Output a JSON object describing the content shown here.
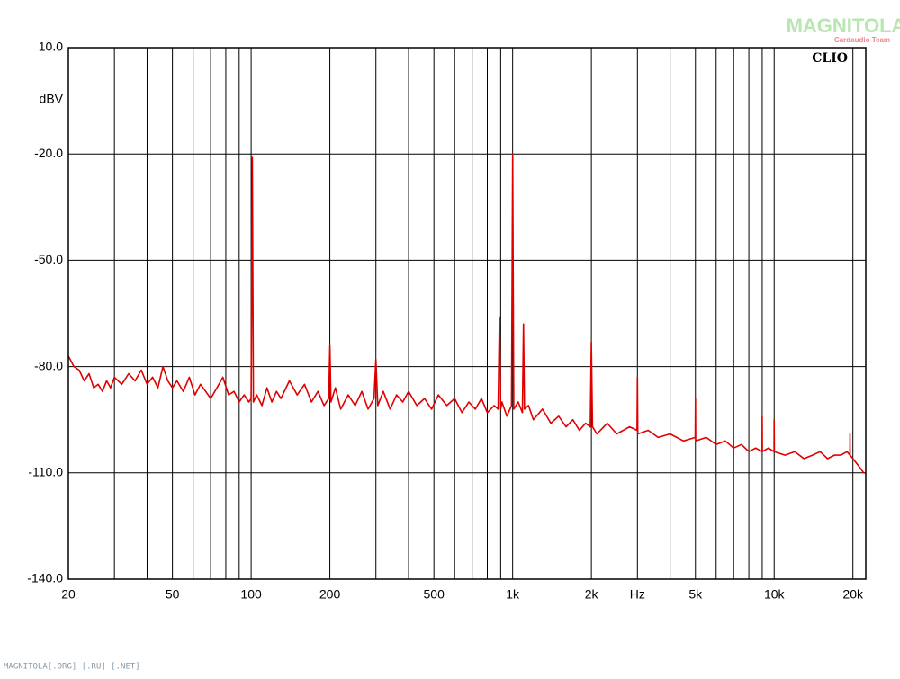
{
  "chart_data": {
    "type": "line",
    "y_label": "dBV",
    "logo": "CLIO",
    "watermark": "MAGNITOLA",
    "watermark_sub": "Cardaudio Team",
    "footer": "MAGNITOLA[.ORG] [.RU] [.NET]",
    "xlog": true,
    "grid": true,
    "xlim": [
      20,
      22400
    ],
    "ylim": [
      -140,
      10
    ],
    "yticks": [
      {
        "value": 10,
        "label": "10.0"
      },
      {
        "value": -20,
        "label": "-20.0"
      },
      {
        "value": -50,
        "label": "-50.0"
      },
      {
        "value": -80,
        "label": "-80.0"
      },
      {
        "value": -110,
        "label": "-110.0"
      },
      {
        "value": -140,
        "label": "-140.0"
      }
    ],
    "xticks": [
      20,
      50,
      100,
      200,
      500,
      {
        "value": 1000,
        "label": "1k"
      },
      {
        "value": 2000,
        "label": "2k"
      },
      {
        "value": 3000,
        "label": "Hz"
      },
      {
        "value": 5000,
        "label": "5k"
      },
      {
        "value": 10000,
        "label": "10k"
      },
      {
        "value": 20000,
        "label": "20k"
      }
    ],
    "x_grid": [
      20,
      30,
      40,
      50,
      60,
      70,
      80,
      90,
      100,
      200,
      300,
      400,
      500,
      600,
      700,
      800,
      900,
      1000,
      2000,
      3000,
      4000,
      5000,
      6000,
      7000,
      8000,
      9000,
      10000,
      20000
    ],
    "x": [
      20,
      21,
      22,
      23,
      24,
      25,
      26,
      27,
      28,
      29,
      30,
      32,
      34,
      36,
      38,
      40,
      42,
      44,
      46,
      48,
      50,
      52,
      55,
      58,
      61,
      64,
      67,
      70,
      74,
      78,
      82,
      86,
      90,
      94,
      98,
      100,
      101,
      102,
      105,
      110,
      115,
      120,
      125,
      130,
      140,
      150,
      160,
      170,
      180,
      190,
      198,
      200,
      202,
      210,
      220,
      235,
      250,
      265,
      280,
      295,
      300,
      305,
      320,
      340,
      360,
      380,
      400,
      430,
      460,
      490,
      520,
      560,
      600,
      640,
      680,
      720,
      760,
      800,
      850,
      880,
      890,
      900,
      910,
      950,
      990,
      1000,
      1010,
      1050,
      1090,
      1100,
      1110,
      1150,
      1200,
      1300,
      1400,
      1500,
      1600,
      1700,
      1800,
      1900,
      1980,
      2000,
      2020,
      2100,
      2300,
      2500,
      2800,
      2990,
      3000,
      3010,
      3300,
      3600,
      4000,
      4500,
      4990,
      5000,
      5010,
      5500,
      6000,
      6500,
      7000,
      7500,
      8000,
      8500,
      8990,
      9000,
      9010,
      9500,
      9990,
      10000,
      10010,
      11000,
      12000,
      13000,
      14000,
      15000,
      16000,
      17000,
      18000,
      19000,
      19490,
      19500,
      19510,
      20000,
      21000,
      22000,
      22400
    ],
    "series": [
      {
        "color": "#e00000",
        "values": [
          -77,
          -80,
          -81,
          -84,
          -82,
          -86,
          -85,
          -87,
          -84,
          -86,
          -83,
          -85,
          -82,
          -84,
          -81,
          -85,
          -83,
          -86,
          -80,
          -84,
          -86,
          -84,
          -87,
          -83,
          -88,
          -85,
          -87,
          -89,
          -86,
          -83,
          -88,
          -87,
          -90,
          -88,
          -90,
          -89,
          -21,
          -90,
          -88,
          -91,
          -86,
          -90,
          -87,
          -89,
          -84,
          -88,
          -85,
          -90,
          -87,
          -91,
          -89,
          -74,
          -90,
          -86,
          -92,
          -88,
          -91,
          -87,
          -92,
          -89,
          -78,
          -91,
          -87,
          -92,
          -88,
          -90,
          -87,
          -91,
          -89,
          -92,
          -88,
          -91,
          -89,
          -93,
          -90,
          -92,
          -89,
          -93,
          -91,
          -92,
          -66,
          -92,
          -90,
          -94,
          -91,
          -20,
          -92,
          -90,
          -93,
          -68,
          -92,
          -91,
          -95,
          -92,
          -96,
          -94,
          -97,
          -95,
          -98,
          -96,
          -97,
          -73,
          -97,
          -99,
          -96,
          -99,
          -97,
          -98,
          -83,
          -99,
          -98,
          -100,
          -99,
          -101,
          -100,
          -89,
          -101,
          -100,
          -102,
          -101,
          -103,
          -102,
          -104,
          -103,
          -104,
          -94,
          -104,
          -103,
          -104,
          -95,
          -104,
          -105,
          -104,
          -106,
          -105,
          -104,
          -106,
          -105,
          -105,
          -104,
          -105,
          -99,
          -105,
          -106,
          -108,
          -110,
          -110
        ]
      }
    ]
  }
}
